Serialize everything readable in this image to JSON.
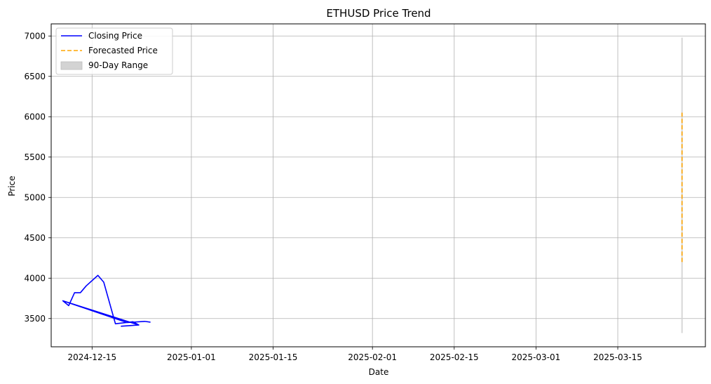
{
  "chart_data": {
    "type": "line",
    "title": "ETHUSD Price Trend",
    "xlabel": "Date",
    "ylabel": "Price",
    "xlim": [
      "2024-12-08",
      "2025-03-30"
    ],
    "ylim": [
      3150,
      7150
    ],
    "x_ticks": [
      "2024-12-15",
      "2025-01-01",
      "2025-01-15",
      "2025-02-01",
      "2025-02-15",
      "2025-03-01",
      "2025-03-15"
    ],
    "y_ticks": [
      3500,
      4000,
      4500,
      5000,
      5500,
      6000,
      6500,
      7000
    ],
    "grid": true,
    "legend_position": "top-left",
    "series": [
      {
        "name": "Closing Price",
        "color": "#0000ff",
        "style": "solid",
        "points": [
          [
            "2024-12-10",
            3720
          ],
          [
            "2024-12-11",
            3660
          ],
          [
            "2024-12-12",
            3820
          ],
          [
            "2024-12-13",
            3820
          ],
          [
            "2024-12-14",
            3905
          ],
          [
            "2024-12-16",
            4035
          ],
          [
            "2024-12-17",
            3950
          ],
          [
            "2024-12-19",
            3435
          ],
          [
            "2024-12-22",
            3460
          ],
          [
            "2024-12-23",
            3420
          ],
          [
            "2024-12-20",
            3405
          ],
          [
            "2024-12-23",
            3420
          ],
          [
            "2024-12-10",
            3720
          ],
          [
            "2024-12-21",
            3450
          ],
          [
            "2024-12-24",
            3465
          ],
          [
            "2024-12-25",
            3455
          ]
        ]
      },
      {
        "name": "Forecasted Price",
        "color": "#ffa500",
        "style": "dashed",
        "points": [
          [
            "2025-03-26",
            4200
          ],
          [
            "2025-03-26",
            6050
          ]
        ]
      }
    ],
    "range": {
      "name": "90-Day Range",
      "color": "#d3d3d3",
      "x": "2025-03-26",
      "low": 3320,
      "high": 6980
    }
  }
}
